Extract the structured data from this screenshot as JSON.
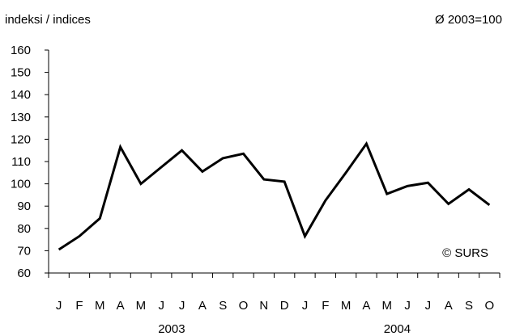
{
  "chart_data": {
    "type": "line",
    "ylabel": "indeksi / indices",
    "base_note": "Ø 2003=100",
    "copyright": "© SURS",
    "ylim": [
      60,
      160
    ],
    "yticks": [
      60,
      70,
      80,
      90,
      100,
      110,
      120,
      130,
      140,
      150,
      160
    ],
    "categories": [
      "J",
      "F",
      "M",
      "A",
      "M",
      "J",
      "J",
      "A",
      "S",
      "O",
      "N",
      "D",
      "J",
      "F",
      "M",
      "A",
      "M",
      "J",
      "J",
      "A",
      "S",
      "O"
    ],
    "year_labels": [
      {
        "label": "2003",
        "start_index": 0,
        "end_index": 11
      },
      {
        "label": "2004",
        "start_index": 12,
        "end_index": 21
      }
    ],
    "series": [
      {
        "values": [
          70.5,
          76.5,
          84.5,
          116.5,
          100,
          107.5,
          115,
          105.5,
          111.5,
          113.5,
          102,
          101,
          76.5,
          92.5,
          105,
          118,
          95.5,
          99,
          100.5,
          91,
          97.5,
          90.5
        ],
        "color": "#000000"
      }
    ],
    "grid": false
  }
}
